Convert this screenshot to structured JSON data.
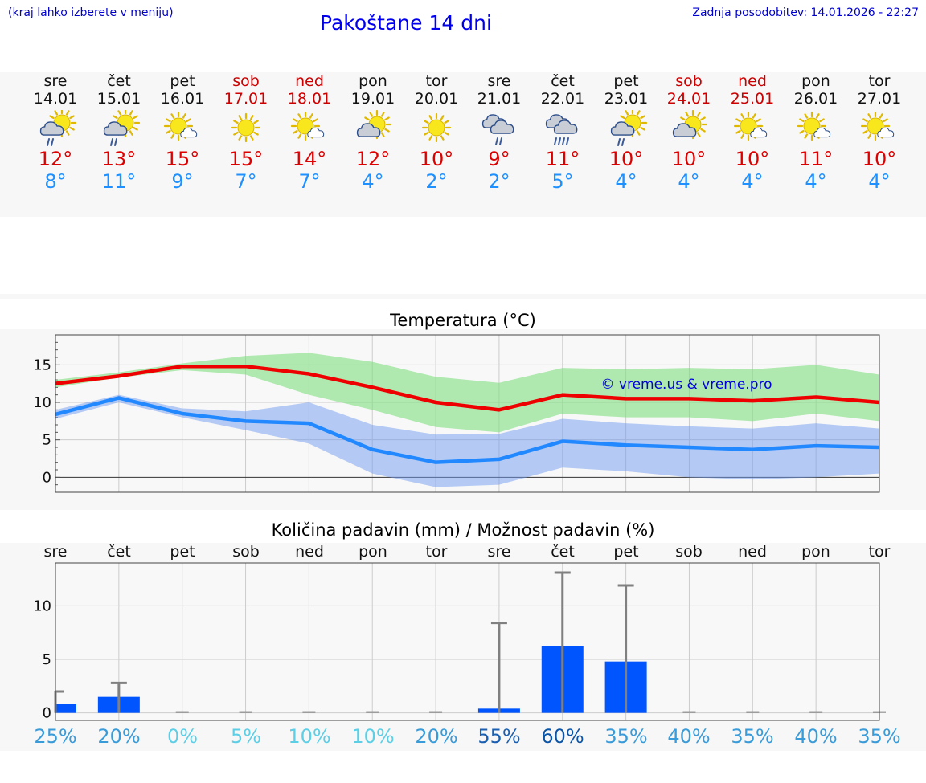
{
  "header": {
    "hint": "(kraj lahko izberete v meniju)",
    "title": "Pakoštane 14 dni",
    "updated": "Zadnja posodobitev: 14.01.2026 - 22:27"
  },
  "days": [
    {
      "name": "sre",
      "date": "14.01",
      "max": "12°",
      "min": "8°",
      "icon": "sun-cloud-rain-icon",
      "weekend": false
    },
    {
      "name": "čet",
      "date": "15.01",
      "max": "13°",
      "min": "11°",
      "icon": "sun-cloud-rain-icon",
      "weekend": false
    },
    {
      "name": "pet",
      "date": "16.01",
      "max": "15°",
      "min": "9°",
      "icon": "sun-small-cloud-icon",
      "weekend": false
    },
    {
      "name": "sob",
      "date": "17.01",
      "max": "15°",
      "min": "7°",
      "icon": "sun-icon",
      "weekend": true
    },
    {
      "name": "ned",
      "date": "18.01",
      "max": "14°",
      "min": "7°",
      "icon": "sun-small-cloud-icon",
      "weekend": true
    },
    {
      "name": "pon",
      "date": "19.01",
      "max": "12°",
      "min": "4°",
      "icon": "sun-cloud-icon",
      "weekend": false
    },
    {
      "name": "tor",
      "date": "20.01",
      "max": "10°",
      "min": "2°",
      "icon": "sun-icon",
      "weekend": false
    },
    {
      "name": "sre",
      "date": "21.01",
      "max": "9°",
      "min": "2°",
      "icon": "cloud-rain-icon",
      "weekend": false
    },
    {
      "name": "čet",
      "date": "22.01",
      "max": "11°",
      "min": "5°",
      "icon": "cloud-heavy-rain-icon",
      "weekend": false
    },
    {
      "name": "pet",
      "date": "23.01",
      "max": "10°",
      "min": "4°",
      "icon": "sun-cloud-rain-icon",
      "weekend": false
    },
    {
      "name": "sob",
      "date": "24.01",
      "max": "10°",
      "min": "4°",
      "icon": "sun-cloud-icon",
      "weekend": true
    },
    {
      "name": "ned",
      "date": "25.01",
      "max": "10°",
      "min": "4°",
      "icon": "sun-small-cloud-icon",
      "weekend": true
    },
    {
      "name": "pon",
      "date": "26.01",
      "max": "11°",
      "min": "4°",
      "icon": "sun-small-cloud-icon",
      "weekend": false
    },
    {
      "name": "tor",
      "date": "27.01",
      "max": "10°",
      "min": "4°",
      "icon": "sun-small-cloud-icon",
      "weekend": false
    }
  ],
  "chart_data": [
    {
      "type": "line",
      "title": "Temperatura (°C)",
      "watermark": "© vreme.us & vreme.pro",
      "x": [
        0,
        1,
        2,
        3,
        4,
        5,
        6,
        7,
        8,
        9,
        10,
        11,
        12,
        13
      ],
      "ylim": [
        -2,
        19
      ],
      "yticks": [
        0,
        5,
        10,
        15
      ],
      "series": [
        {
          "name": "max",
          "color": "#ee0000",
          "values": [
            12.5,
            13.5,
            14.8,
            14.8,
            13.8,
            12,
            10,
            9,
            11,
            10.5,
            10.5,
            10.2,
            10.7,
            10
          ]
        },
        {
          "name": "max_range_high",
          "values": [
            13,
            14,
            15.2,
            16.2,
            16.6,
            15.4,
            13.4,
            12.6,
            14.6,
            14.4,
            14.6,
            14.4,
            15,
            13.7
          ]
        },
        {
          "name": "max_range_low",
          "values": [
            12,
            13.3,
            14.3,
            13.7,
            11,
            9,
            6.7,
            6,
            8.5,
            8,
            8,
            7.5,
            8.5,
            7.5
          ]
        },
        {
          "name": "min",
          "color": "#2288ff",
          "values": [
            8.4,
            10.6,
            8.5,
            7.5,
            7.2,
            3.7,
            2,
            2.4,
            4.8,
            4.3,
            4,
            3.7,
            4.2,
            4
          ]
        },
        {
          "name": "min_range_high",
          "values": [
            9,
            11,
            9.2,
            8.8,
            10,
            7,
            5.7,
            5.8,
            7.8,
            7.2,
            6.8,
            6.5,
            7.2,
            6.5
          ]
        },
        {
          "name": "min_range_low",
          "values": [
            7.8,
            10,
            8,
            6.3,
            4.5,
            0.5,
            -1.3,
            -1,
            1.3,
            0.8,
            0,
            -0.3,
            0,
            0.5
          ]
        }
      ]
    },
    {
      "type": "bar",
      "title": "Količina padavin (mm) / Možnost padavin (%)",
      "categories": [
        "sre",
        "čet",
        "pet",
        "sob",
        "ned",
        "pon",
        "tor",
        "sre",
        "čet",
        "pet",
        "sob",
        "ned",
        "pon",
        "tor"
      ],
      "values": [
        0.8,
        1.5,
        0,
        0,
        0,
        0,
        0,
        0.4,
        6.2,
        4.8,
        0,
        0,
        0,
        0
      ],
      "error_high": [
        2,
        2.8,
        0,
        0,
        0,
        0,
        0,
        8.4,
        13.1,
        11.9,
        0,
        0,
        0,
        0
      ],
      "ylim": [
        -0.7,
        14
      ],
      "yticks": [
        0,
        5,
        10
      ],
      "probability_labels": [
        "25%",
        "20%",
        "0%",
        "5%",
        "10%",
        "10%",
        "20%",
        "55%",
        "60%",
        "35%",
        "40%",
        "35%",
        "40%",
        "35%"
      ],
      "probability_values": [
        25,
        20,
        0,
        5,
        10,
        10,
        20,
        55,
        60,
        35,
        40,
        35,
        40,
        35
      ],
      "colors": {
        "bar": "#0055ff",
        "error": "#808080"
      }
    }
  ]
}
